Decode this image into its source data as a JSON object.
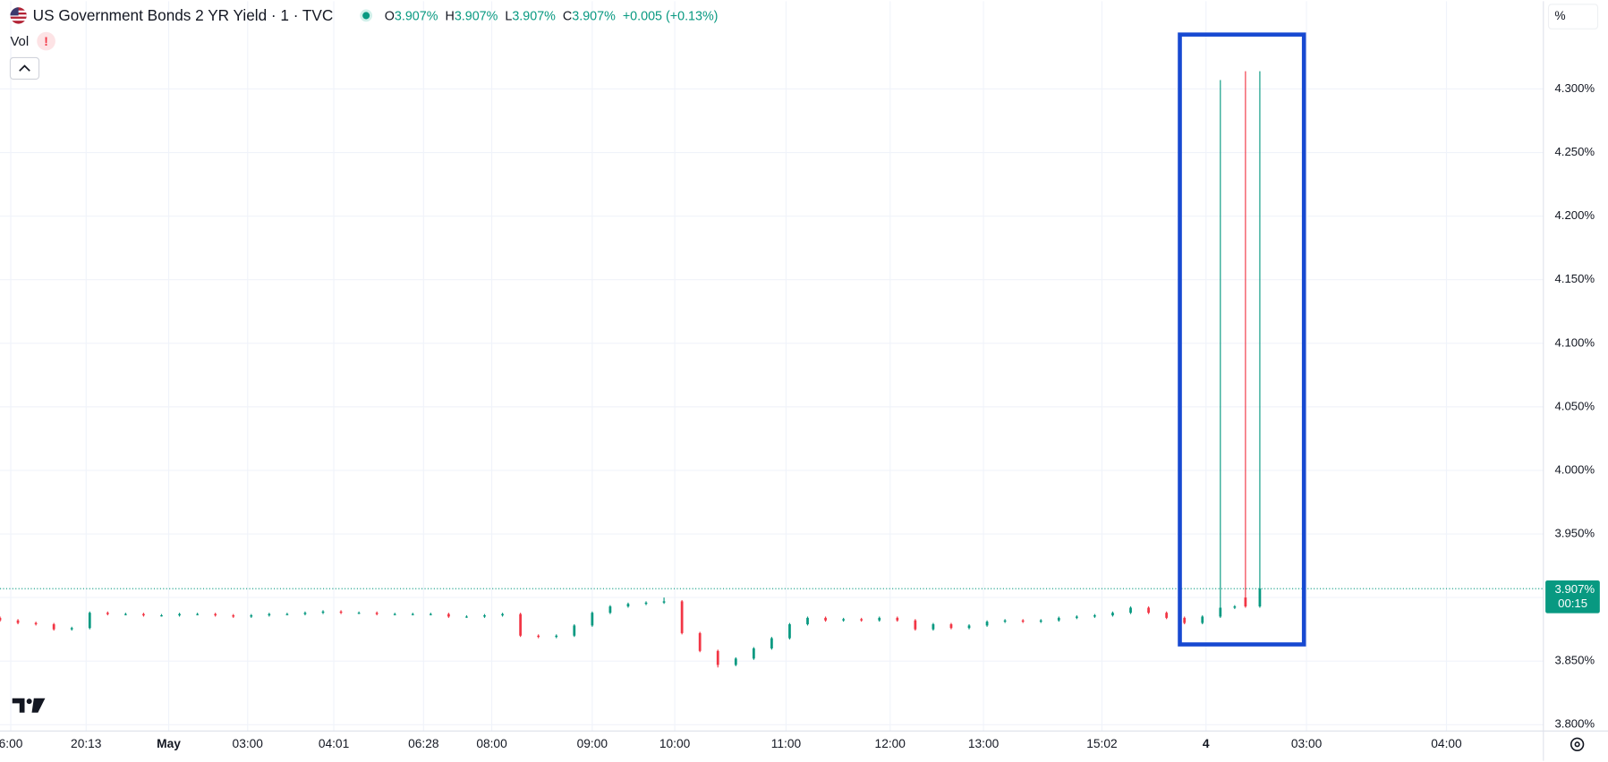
{
  "chart_data": {
    "type": "candlestick",
    "title": "US Government Bonds 2 YR Yield · 1 · TVC",
    "ohlc_legend": [
      {
        "key": "O",
        "value": "3.907%"
      },
      {
        "key": "H",
        "value": "3.907%"
      },
      {
        "key": "L",
        "value": "3.907%"
      },
      {
        "key": "C",
        "value": "3.907%"
      }
    ],
    "change": "+0.005 (+0.13%)",
    "volume_label": "Vol",
    "volume_warning": "!",
    "scale_mode": "%",
    "up_color": "#089981",
    "down_color": "#f23645",
    "grid": true,
    "last_price": {
      "value": 3.907,
      "label": "3.907%"
    },
    "countdown": "00:15",
    "xlim": [
      0,
      430
    ],
    "xticks": [
      {
        "value": 3,
        "label": "6:00"
      },
      {
        "value": 24,
        "label": "20:13"
      },
      {
        "value": 47,
        "label": "May"
      },
      {
        "value": 69,
        "label": "03:00"
      },
      {
        "value": 93,
        "label": "04:01"
      },
      {
        "value": 118,
        "label": "06:28"
      },
      {
        "value": 137,
        "label": "08:00"
      },
      {
        "value": 165,
        "label": "09:00"
      },
      {
        "value": 188,
        "label": "10:00"
      },
      {
        "value": 219,
        "label": "11:00"
      },
      {
        "value": 248,
        "label": "12:00"
      },
      {
        "value": 274,
        "label": "13:00"
      },
      {
        "value": 307,
        "label": "15:02"
      },
      {
        "value": 336,
        "label": "4"
      },
      {
        "value": 364,
        "label": "03:00"
      },
      {
        "value": 403,
        "label": "04:00"
      }
    ],
    "ylim": [
      3.795,
      4.369
    ],
    "yticks": [
      {
        "value": 3.8,
        "label": "3.800%"
      },
      {
        "value": 3.85,
        "label": "3.850%"
      },
      {
        "value": 3.9,
        "label": "3.900%"
      },
      {
        "value": 3.95,
        "label": "3.950%"
      },
      {
        "value": 4.0,
        "label": "4.000%"
      },
      {
        "value": 4.05,
        "label": "4.050%"
      },
      {
        "value": 4.1,
        "label": "4.100%"
      },
      {
        "value": 4.15,
        "label": "4.150%"
      },
      {
        "value": 4.2,
        "label": "4.200%"
      },
      {
        "value": 4.25,
        "label": "4.250%"
      },
      {
        "value": 4.3,
        "label": "4.300%"
      }
    ],
    "x": [
      0,
      5,
      10,
      15,
      20,
      25,
      30,
      35,
      40,
      45,
      50,
      55,
      60,
      65,
      70,
      75,
      80,
      85,
      90,
      95,
      100,
      105,
      110,
      115,
      120,
      125,
      130,
      135,
      140,
      145,
      150,
      155,
      160,
      165,
      170,
      175,
      180,
      185,
      190,
      195,
      200,
      205,
      210,
      215,
      220,
      225,
      230,
      235,
      240,
      245,
      250,
      255,
      260,
      265,
      270,
      275,
      280,
      285,
      290,
      295,
      300,
      305,
      310,
      315,
      320,
      325,
      330,
      335,
      340,
      344,
      347,
      351
    ],
    "open": [
      3.884,
      3.882,
      3.88,
      3.879,
      3.875,
      3.876,
      3.888,
      3.887,
      3.887,
      3.886,
      3.886,
      3.887,
      3.887,
      3.886,
      3.885,
      3.886,
      3.887,
      3.887,
      3.888,
      3.889,
      3.888,
      3.888,
      3.887,
      3.887,
      3.887,
      3.887,
      3.885,
      3.885,
      3.886,
      3.887,
      3.87,
      3.869,
      3.87,
      3.878,
      3.888,
      3.893,
      3.895,
      3.896,
      3.897,
      3.872,
      3.858,
      3.847,
      3.852,
      3.86,
      3.868,
      3.879,
      3.884,
      3.882,
      3.883,
      3.882,
      3.884,
      3.882,
      3.875,
      3.879,
      3.876,
      3.878,
      3.881,
      3.882,
      3.881,
      3.882,
      3.884,
      3.885,
      3.886,
      3.888,
      3.892,
      3.888,
      3.884,
      3.88,
      3.885,
      3.892,
      3.9,
      3.893
    ],
    "high": [
      3.885,
      3.883,
      3.881,
      3.88,
      3.877,
      3.889,
      3.889,
      3.888,
      3.888,
      3.887,
      3.888,
      3.888,
      3.888,
      3.887,
      3.887,
      3.888,
      3.888,
      3.889,
      3.89,
      3.89,
      3.889,
      3.889,
      3.888,
      3.888,
      3.888,
      3.888,
      3.886,
      3.887,
      3.888,
      3.888,
      3.871,
      3.871,
      3.879,
      3.889,
      3.894,
      3.896,
      3.897,
      3.9,
      3.898,
      3.873,
      3.859,
      3.853,
      3.861,
      3.869,
      3.88,
      3.885,
      3.885,
      3.884,
      3.884,
      3.885,
      3.885,
      3.883,
      3.88,
      3.88,
      3.879,
      3.882,
      3.883,
      3.883,
      3.883,
      3.885,
      3.886,
      3.887,
      3.889,
      3.893,
      3.893,
      3.889,
      3.885,
      3.886,
      4.307,
      3.894,
      4.314,
      4.314
    ],
    "low": [
      3.881,
      3.879,
      3.878,
      3.874,
      3.874,
      3.875,
      3.886,
      3.886,
      3.885,
      3.885,
      3.885,
      3.886,
      3.885,
      3.884,
      3.884,
      3.885,
      3.886,
      3.886,
      3.887,
      3.887,
      3.887,
      3.886,
      3.886,
      3.886,
      3.886,
      3.884,
      3.884,
      3.884,
      3.885,
      3.869,
      3.868,
      3.868,
      3.869,
      3.877,
      3.887,
      3.892,
      3.894,
      3.895,
      3.871,
      3.857,
      3.845,
      3.846,
      3.851,
      3.859,
      3.867,
      3.878,
      3.881,
      3.881,
      3.881,
      3.881,
      3.881,
      3.874,
      3.874,
      3.875,
      3.875,
      3.877,
      3.88,
      3.88,
      3.88,
      3.881,
      3.883,
      3.884,
      3.885,
      3.887,
      3.887,
      3.883,
      3.879,
      3.879,
      3.884,
      3.891,
      3.892,
      3.892
    ],
    "close": [
      3.882,
      3.88,
      3.879,
      3.875,
      3.876,
      3.888,
      3.887,
      3.887,
      3.886,
      3.886,
      3.887,
      3.887,
      3.886,
      3.885,
      3.886,
      3.887,
      3.887,
      3.888,
      3.889,
      3.888,
      3.888,
      3.887,
      3.887,
      3.887,
      3.887,
      3.885,
      3.885,
      3.886,
      3.887,
      3.87,
      3.869,
      3.87,
      3.878,
      3.888,
      3.893,
      3.895,
      3.896,
      3.897,
      3.872,
      3.858,
      3.847,
      3.852,
      3.86,
      3.868,
      3.879,
      3.884,
      3.882,
      3.883,
      3.882,
      3.884,
      3.882,
      3.875,
      3.879,
      3.876,
      3.878,
      3.881,
      3.882,
      3.881,
      3.882,
      3.884,
      3.885,
      3.886,
      3.888,
      3.892,
      3.888,
      3.884,
      3.88,
      3.885,
      3.892,
      3.893,
      3.893,
      3.907
    ]
  }
}
